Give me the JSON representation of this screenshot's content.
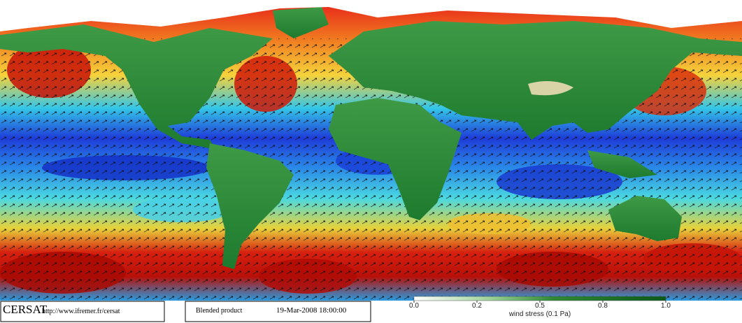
{
  "footer": {
    "logo": "CERSAT",
    "url": "http://www.ifremer.fr/cersat",
    "product": "Blended product",
    "date": "19-Mar-2008 18:00:00"
  },
  "colorbar": {
    "label": "wind stress (0.1 Pa)",
    "ticks": [
      {
        "value": 0,
        "label": "0.0"
      },
      0.2,
      0.5,
      0.8,
      {
        "value": 1,
        "label": "1.0"
      }
    ]
  }
}
